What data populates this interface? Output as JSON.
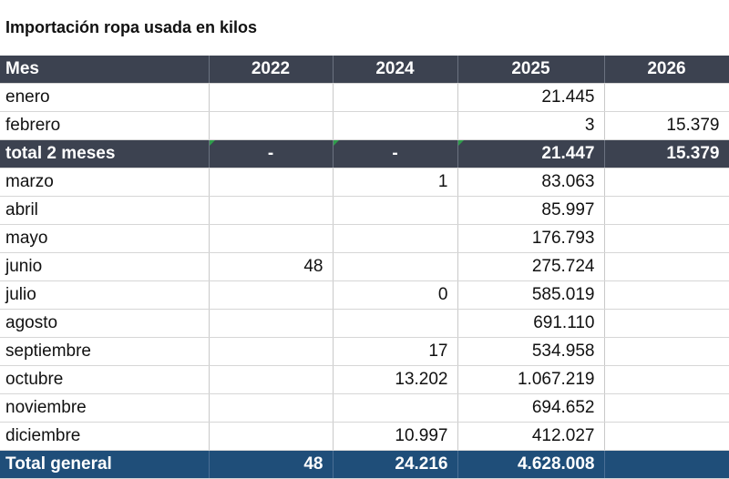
{
  "title": "Importación ropa usada en kilos",
  "header": [
    "Mes",
    "2022",
    "2024",
    "2025",
    "2026"
  ],
  "rows_top": [
    {
      "mes": "enero",
      "y2022": "",
      "y2024": "",
      "y2025": "21.445",
      "y2026": ""
    },
    {
      "mes": "febrero",
      "y2022": "",
      "y2024": "",
      "y2025": "3",
      "y2026": "15.379"
    }
  ],
  "subtotal": {
    "mes": "total 2 meses",
    "y2022": "-",
    "y2024": "-",
    "y2025": "21.447",
    "y2026": "15.379"
  },
  "rows_bottom": [
    {
      "mes": "marzo",
      "y2022": "",
      "y2024": "1",
      "y2025": "83.063",
      "y2026": ""
    },
    {
      "mes": "abril",
      "y2022": "",
      "y2024": "",
      "y2025": "85.997",
      "y2026": ""
    },
    {
      "mes": "mayo",
      "y2022": "",
      "y2024": "",
      "y2025": "176.793",
      "y2026": ""
    },
    {
      "mes": "junio",
      "y2022": "48",
      "y2024": "",
      "y2025": "275.724",
      "y2026": ""
    },
    {
      "mes": "julio",
      "y2022": "",
      "y2024": "0",
      "y2025": "585.019",
      "y2026": ""
    },
    {
      "mes": "agosto",
      "y2022": "",
      "y2024": "",
      "y2025": "691.110",
      "y2026": ""
    },
    {
      "mes": "septiembre",
      "y2022": "",
      "y2024": "17",
      "y2025": "534.958",
      "y2026": ""
    },
    {
      "mes": "octubre",
      "y2022": "",
      "y2024": "13.202",
      "y2025": "1.067.219",
      "y2026": ""
    },
    {
      "mes": "noviembre",
      "y2022": "",
      "y2024": "",
      "y2025": "694.652",
      "y2026": ""
    },
    {
      "mes": "diciembre",
      "y2022": "",
      "y2024": "10.997",
      "y2025": "412.027",
      "y2026": ""
    }
  ],
  "grand_total": {
    "mes": "Total general",
    "y2022": "48",
    "y2024": "24.216",
    "y2025": "4.628.008",
    "y2026": ""
  },
  "colors": {
    "header_bg": "#3c4250",
    "subtotal_bg": "#3c4250",
    "grand_total_bg": "#1f4e79",
    "error_marker": "#2e9d4b"
  }
}
